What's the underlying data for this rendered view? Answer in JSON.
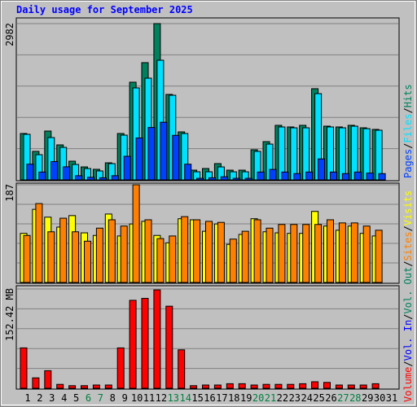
{
  "legend_separator": "/",
  "chart_data": [
    {
      "type": "bar",
      "title": "Daily usage for September 2025",
      "title_color": "#0000ff",
      "ylim": [
        0,
        2982
      ],
      "yticks": [
        2982
      ],
      "grid": true,
      "series": [
        {
          "name": "Pages",
          "color": "#0040ff",
          "values": [
            300,
            150,
            350,
            250,
            80,
            50,
            40,
            80,
            450,
            800,
            1000,
            1100,
            850,
            300,
            30,
            40,
            60,
            30,
            30,
            150,
            200,
            150,
            120,
            150,
            400,
            150,
            120,
            150,
            130,
            120,
            null
          ]
        },
        {
          "name": "Files",
          "color": "#00e0ff",
          "values": [
            870,
            481,
            808,
            621,
            295,
            217,
            171,
            311,
            854,
            1755,
            1941,
            2283,
            1615,
            885,
            155,
            155,
            248,
            155,
            155,
            544,
            683,
            1010,
            994,
            994,
            1646,
            1010,
            994,
            1025,
            978,
            948,
            null
          ]
        },
        {
          "name": "Hits",
          "color": "#00805c",
          "values": [
            885,
            544,
            932,
            668,
            357,
            248,
            202,
            326,
            885,
            1864,
            2237,
            2982,
            1631,
            916,
            186,
            217,
            311,
            186,
            186,
            575,
            730,
            1041,
            1010,
            1041,
            1740,
            1025,
            1010,
            1041,
            994,
            963,
            null
          ]
        }
      ]
    },
    {
      "type": "bar",
      "ylim": [
        0,
        187
      ],
      "yticks": [
        187
      ],
      "grid": true,
      "series": [
        {
          "name": "Sites",
          "color": "#ff8000",
          "values": [
            90,
            151,
            97,
            123,
            97,
            79,
            104,
            120,
            108,
            187,
            120,
            84,
            89,
            126,
            120,
            117,
            115,
            83,
            98,
            120,
            104,
            111,
            111,
            111,
            111,
            120,
            114,
            114,
            108,
            100,
            null
          ]
        },
        {
          "name": "Visits",
          "color": "#ffff00",
          "values": [
            94,
            140,
            125,
            106,
            128,
            95,
            90,
            131,
            89,
            112,
            117,
            90,
            76,
            122,
            120,
            98,
            112,
            73,
            92,
            122,
            97,
            95,
            94,
            94,
            136,
            108,
            100,
            108,
            94,
            89,
            null
          ]
        }
      ]
    },
    {
      "type": "bar",
      "ylim": [
        0,
        152.42
      ],
      "yticks": [
        {
          "value": 152.42,
          "label": "152.42 MB"
        }
      ],
      "grid": true,
      "categories": [
        "1",
        "2",
        "3",
        "4",
        "5",
        "6",
        "7",
        "8",
        "9",
        "10",
        "11",
        "12",
        "13",
        "14",
        "15",
        "16",
        "17",
        "18",
        "19",
        "20",
        "21",
        "22",
        "23",
        "24",
        "25",
        "26",
        "27",
        "28",
        "29",
        "30",
        "31"
      ],
      "category_colors": [
        "#000000",
        "#000000",
        "#000000",
        "#000000",
        "#000000",
        "#008040",
        "#008040",
        "#000000",
        "#000000",
        "#000000",
        "#000000",
        "#000000",
        "#008040",
        "#008040",
        "#000000",
        "#000000",
        "#000000",
        "#000000",
        "#000000",
        "#008040",
        "#008040",
        "#000000",
        "#000000",
        "#000000",
        "#000000",
        "#000000",
        "#008040",
        "#008040",
        "#000000",
        "#000000",
        "#000000"
      ],
      "series": [
        {
          "name": "Volume",
          "color": "#ff0000",
          "values": [
            62,
            16,
            27,
            6,
            4,
            4,
            5,
            5,
            62,
            135,
            138,
            151,
            126,
            59,
            4,
            5,
            5,
            7,
            7,
            5,
            6,
            6,
            6,
            7,
            10,
            9,
            5,
            5,
            5,
            7,
            null
          ]
        },
        {
          "name": "Vol. In",
          "color": "#0000ff",
          "values": [
            null,
            null,
            null,
            null,
            null,
            null,
            null,
            null,
            null,
            null,
            null,
            null,
            null,
            null,
            null,
            null,
            null,
            null,
            null,
            null,
            null,
            null,
            null,
            null,
            null,
            null,
            null,
            null,
            null,
            null,
            null
          ]
        },
        {
          "name": "Vol. Out",
          "color": "#00805c",
          "values": [
            null,
            null,
            null,
            null,
            null,
            null,
            null,
            null,
            null,
            null,
            null,
            null,
            null,
            null,
            null,
            null,
            null,
            null,
            null,
            null,
            null,
            null,
            null,
            null,
            null,
            null,
            null,
            null,
            null,
            null,
            null
          ]
        }
      ]
    }
  ]
}
